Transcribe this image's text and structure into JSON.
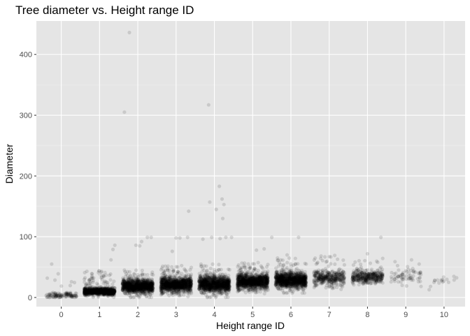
{
  "chart_data": {
    "type": "scatter",
    "title": "Tree diameter vs. Height range ID",
    "xlabel": "Height range ID",
    "ylabel": "Diameter",
    "x_ticks": [
      0,
      1,
      2,
      3,
      4,
      5,
      6,
      7,
      8,
      9,
      10
    ],
    "y_ticks": [
      0,
      100,
      200,
      300,
      400
    ],
    "xlim": [
      -0.65,
      10.55
    ],
    "ylim": [
      -15,
      455
    ],
    "jitter_width": 0.4,
    "point_color": "#000000",
    "point_alpha": 0.12,
    "panel_background": "#e5e5e5",
    "grid": true,
    "groups": [
      {
        "x": 0,
        "density": "low",
        "typical_range": [
          0,
          10
        ],
        "spread_max": 40
      },
      {
        "x": 1,
        "density": "high",
        "typical_range": [
          2,
          18
        ],
        "spread_max": 45
      },
      {
        "x": 2,
        "density": "high",
        "typical_range": [
          3,
          35
        ],
        "spread_max": 45
      },
      {
        "x": 3,
        "density": "high",
        "typical_range": [
          3,
          40
        ],
        "spread_max": 55
      },
      {
        "x": 4,
        "density": "high",
        "typical_range": [
          3,
          42
        ],
        "spread_max": 55
      },
      {
        "x": 5,
        "density": "high",
        "typical_range": [
          8,
          45
        ],
        "spread_max": 60
      },
      {
        "x": 6,
        "density": "high",
        "typical_range": [
          10,
          48
        ],
        "spread_max": 65
      },
      {
        "x": 7,
        "density": "medium",
        "typical_range": [
          15,
          50
        ],
        "spread_max": 72
      },
      {
        "x": 8,
        "density": "medium",
        "typical_range": [
          18,
          50
        ],
        "spread_max": 70
      },
      {
        "x": 9,
        "density": "low",
        "typical_range": [
          15,
          55
        ],
        "spread_max": 62
      },
      {
        "x": 10,
        "density": "sparse",
        "typical_range": [
          5,
          50
        ],
        "spread_max": 50
      }
    ],
    "outliers": [
      {
        "x": 1.4,
        "y": 86
      },
      {
        "x": 1.35,
        "y": 79
      },
      {
        "x": 1.3,
        "y": 62
      },
      {
        "x": 1.65,
        "y": 305
      },
      {
        "x": 1.78,
        "y": 436
      },
      {
        "x": 1.95,
        "y": 86
      },
      {
        "x": 2.05,
        "y": 85
      },
      {
        "x": 2.1,
        "y": 92
      },
      {
        "x": 2.25,
        "y": 99
      },
      {
        "x": 2.35,
        "y": 99
      },
      {
        "x": 3.0,
        "y": 98
      },
      {
        "x": 3.1,
        "y": 98
      },
      {
        "x": 3.3,
        "y": 99
      },
      {
        "x": 3.33,
        "y": 142
      },
      {
        "x": 2.9,
        "y": 76
      },
      {
        "x": 3.7,
        "y": 96
      },
      {
        "x": 3.85,
        "y": 317
      },
      {
        "x": 3.88,
        "y": 157
      },
      {
        "x": 3.93,
        "y": 99
      },
      {
        "x": 4.05,
        "y": 145
      },
      {
        "x": 4.13,
        "y": 183
      },
      {
        "x": 4.2,
        "y": 162
      },
      {
        "x": 4.25,
        "y": 153
      },
      {
        "x": 4.22,
        "y": 130
      },
      {
        "x": 4.3,
        "y": 99
      },
      {
        "x": 4.45,
        "y": 99
      },
      {
        "x": 4.15,
        "y": 97
      },
      {
        "x": 5.5,
        "y": 99
      },
      {
        "x": 5.3,
        "y": 80
      },
      {
        "x": 5.1,
        "y": 78
      },
      {
        "x": 6.2,
        "y": 99
      },
      {
        "x": 5.9,
        "y": 70
      },
      {
        "x": 8.35,
        "y": 99
      },
      {
        "x": 8.0,
        "y": 72
      },
      {
        "x": 9.15,
        "y": 62
      },
      {
        "x": 9.35,
        "y": 55
      },
      {
        "x": -0.25,
        "y": 55
      }
    ]
  }
}
